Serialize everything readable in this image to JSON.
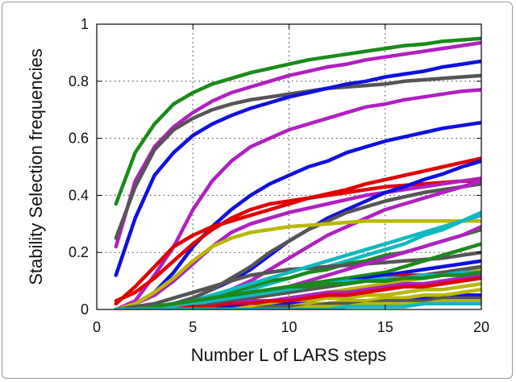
{
  "chart_data": {
    "type": "line",
    "xlabel": "Number L of LARS steps",
    "ylabel": "Stability Selection frequencies",
    "xlim": [
      0,
      20
    ],
    "ylim": [
      0,
      1
    ],
    "xticks": [
      0,
      5,
      10,
      15,
      20
    ],
    "xtick_labels": [
      "0",
      "5",
      "10",
      "15",
      "20"
    ],
    "yticks": [
      0,
      0.2,
      0.4,
      0.6,
      0.8,
      1
    ],
    "ytick_labels": [
      "0",
      "0.2",
      "0.4",
      "0.6",
      "0.8",
      "1"
    ],
    "grid": "dotted",
    "x": [
      1,
      2,
      3,
      4,
      5,
      6,
      7,
      8,
      9,
      10,
      11,
      12,
      13,
      14,
      15,
      16,
      17,
      18,
      19,
      20
    ],
    "series": [
      {
        "color": "#1a8a1a",
        "values": [
          0.37,
          0.55,
          0.65,
          0.72,
          0.76,
          0.79,
          0.81,
          0.83,
          0.845,
          0.86,
          0.875,
          0.885,
          0.895,
          0.905,
          0.915,
          0.925,
          0.93,
          0.94,
          0.945,
          0.95
        ]
      },
      {
        "color": "#b020c0",
        "values": [
          0.22,
          0.45,
          0.57,
          0.64,
          0.69,
          0.73,
          0.76,
          0.78,
          0.8,
          0.82,
          0.835,
          0.85,
          0.86,
          0.875,
          0.885,
          0.895,
          0.905,
          0.915,
          0.925,
          0.935
        ]
      },
      {
        "color": "#555555",
        "values": [
          0.25,
          0.43,
          0.56,
          0.63,
          0.67,
          0.7,
          0.72,
          0.735,
          0.745,
          0.755,
          0.765,
          0.775,
          0.78,
          0.785,
          0.79,
          0.8,
          0.805,
          0.81,
          0.815,
          0.82
        ]
      },
      {
        "color": "#1010e0",
        "values": [
          0.12,
          0.32,
          0.47,
          0.55,
          0.61,
          0.65,
          0.68,
          0.705,
          0.725,
          0.745,
          0.76,
          0.775,
          0.79,
          0.8,
          0.815,
          0.825,
          0.835,
          0.85,
          0.86,
          0.87
        ]
      },
      {
        "color": "#b020c0",
        "values": [
          0.0,
          0.03,
          0.12,
          0.22,
          0.35,
          0.45,
          0.52,
          0.57,
          0.6,
          0.63,
          0.65,
          0.67,
          0.69,
          0.71,
          0.72,
          0.735,
          0.745,
          0.755,
          0.765,
          0.77
        ]
      },
      {
        "color": "#1010e0",
        "values": [
          0.0,
          0.02,
          0.06,
          0.13,
          0.22,
          0.29,
          0.35,
          0.4,
          0.44,
          0.47,
          0.5,
          0.52,
          0.55,
          0.57,
          0.59,
          0.605,
          0.62,
          0.635,
          0.645,
          0.655
        ]
      },
      {
        "color": "#e00000",
        "values": [
          0.02,
          0.08,
          0.15,
          0.22,
          0.26,
          0.29,
          0.31,
          0.33,
          0.35,
          0.37,
          0.39,
          0.405,
          0.42,
          0.44,
          0.455,
          0.47,
          0.485,
          0.5,
          0.515,
          0.53
        ]
      },
      {
        "color": "#e00000",
        "values": [
          0.03,
          0.06,
          0.11,
          0.17,
          0.23,
          0.28,
          0.32,
          0.35,
          0.37,
          0.38,
          0.39,
          0.4,
          0.41,
          0.42,
          0.43,
          0.435,
          0.44,
          0.445,
          0.45,
          0.45
        ]
      },
      {
        "color": "#b020c0",
        "values": [
          0.0,
          0.02,
          0.05,
          0.1,
          0.16,
          0.22,
          0.27,
          0.3,
          0.32,
          0.34,
          0.355,
          0.37,
          0.385,
          0.4,
          0.41,
          0.42,
          0.43,
          0.44,
          0.45,
          0.46
        ]
      },
      {
        "color": "#1010e0",
        "values": [
          0.0,
          0.0,
          0.01,
          0.02,
          0.04,
          0.07,
          0.1,
          0.14,
          0.19,
          0.24,
          0.28,
          0.32,
          0.35,
          0.38,
          0.41,
          0.43,
          0.455,
          0.475,
          0.5,
          0.52
        ]
      },
      {
        "color": "#555555",
        "values": [
          0.0,
          0.0,
          0.01,
          0.02,
          0.04,
          0.07,
          0.11,
          0.15,
          0.2,
          0.24,
          0.28,
          0.31,
          0.34,
          0.36,
          0.38,
          0.395,
          0.41,
          0.42,
          0.43,
          0.44
        ]
      },
      {
        "color": "#b020c0",
        "values": [
          0.0,
          0.0,
          0.0,
          0.01,
          0.02,
          0.04,
          0.07,
          0.1,
          0.14,
          0.18,
          0.22,
          0.26,
          0.29,
          0.32,
          0.35,
          0.37,
          0.39,
          0.41,
          0.43,
          0.45
        ]
      },
      {
        "color": "#b8b800",
        "values": [
          0.0,
          0.02,
          0.06,
          0.11,
          0.17,
          0.22,
          0.25,
          0.27,
          0.28,
          0.29,
          0.295,
          0.3,
          0.305,
          0.31,
          0.31,
          0.31,
          0.31,
          0.31,
          0.31,
          0.31
        ]
      },
      {
        "color": "#10b8c0",
        "values": [
          0.0,
          0.0,
          0.0,
          0.01,
          0.02,
          0.03,
          0.05,
          0.07,
          0.09,
          0.11,
          0.13,
          0.15,
          0.17,
          0.19,
          0.21,
          0.23,
          0.26,
          0.28,
          0.31,
          0.34
        ]
      },
      {
        "color": "#1a8a1a",
        "values": [
          0.0,
          0.0,
          0.01,
          0.02,
          0.03,
          0.05,
          0.06,
          0.08,
          0.1,
          0.11,
          0.13,
          0.14,
          0.16,
          0.17,
          0.19,
          0.2,
          0.22,
          0.24,
          0.26,
          0.28
        ]
      },
      {
        "color": "#555555",
        "values": [
          0.0,
          0.01,
          0.02,
          0.04,
          0.06,
          0.08,
          0.1,
          0.12,
          0.13,
          0.14,
          0.145,
          0.15,
          0.155,
          0.16,
          0.165,
          0.17,
          0.175,
          0.18,
          0.19,
          0.2
        ]
      },
      {
        "color": "#10b8c0",
        "values": [
          0.0,
          0.0,
          0.01,
          0.02,
          0.03,
          0.05,
          0.07,
          0.09,
          0.11,
          0.13,
          0.15,
          0.17,
          0.19,
          0.21,
          0.23,
          0.25,
          0.27,
          0.29,
          0.31,
          0.33
        ]
      },
      {
        "color": "#b020c0",
        "values": [
          0.0,
          0.0,
          0.0,
          0.01,
          0.02,
          0.03,
          0.04,
          0.05,
          0.06,
          0.08,
          0.1,
          0.12,
          0.14,
          0.16,
          0.18,
          0.2,
          0.22,
          0.24,
          0.26,
          0.29
        ]
      },
      {
        "color": "#1a8a1a",
        "values": [
          0.0,
          0.0,
          0.01,
          0.02,
          0.03,
          0.04,
          0.05,
          0.06,
          0.07,
          0.08,
          0.09,
          0.1,
          0.11,
          0.12,
          0.13,
          0.15,
          0.17,
          0.19,
          0.21,
          0.23
        ]
      },
      {
        "color": "#1010e0",
        "values": [
          0.0,
          0.0,
          0.0,
          0.01,
          0.02,
          0.03,
          0.04,
          0.05,
          0.06,
          0.07,
          0.08,
          0.09,
          0.1,
          0.11,
          0.12,
          0.13,
          0.14,
          0.15,
          0.16,
          0.17
        ]
      },
      {
        "color": "#e00000",
        "values": [
          0.0,
          0.0,
          0.0,
          0.01,
          0.01,
          0.02,
          0.03,
          0.04,
          0.05,
          0.06,
          0.07,
          0.08,
          0.09,
          0.1,
          0.11,
          0.12,
          0.12,
          0.13,
          0.13,
          0.14
        ]
      },
      {
        "color": "#b8b800",
        "values": [
          0.0,
          0.0,
          0.0,
          0.0,
          0.01,
          0.01,
          0.02,
          0.02,
          0.03,
          0.04,
          0.05,
          0.06,
          0.07,
          0.08,
          0.09,
          0.1,
          0.11,
          0.12,
          0.13,
          0.14
        ]
      },
      {
        "color": "#555555",
        "values": [
          0.0,
          0.0,
          0.0,
          0.0,
          0.01,
          0.02,
          0.03,
          0.04,
          0.05,
          0.06,
          0.07,
          0.08,
          0.09,
          0.1,
          0.1,
          0.11,
          0.12,
          0.13,
          0.14,
          0.15
        ]
      },
      {
        "color": "#10b8c0",
        "values": [
          0.0,
          0.0,
          0.0,
          0.01,
          0.02,
          0.03,
          0.04,
          0.05,
          0.06,
          0.07,
          0.08,
          0.09,
          0.1,
          0.1,
          0.11,
          0.11,
          0.12,
          0.12,
          0.13,
          0.13
        ]
      },
      {
        "color": "#b020c0",
        "values": [
          0.0,
          0.0,
          0.0,
          0.0,
          0.01,
          0.01,
          0.02,
          0.03,
          0.03,
          0.04,
          0.05,
          0.06,
          0.06,
          0.07,
          0.08,
          0.09,
          0.09,
          0.1,
          0.11,
          0.12
        ]
      },
      {
        "color": "#1a8a1a",
        "values": [
          0.0,
          0.0,
          0.01,
          0.02,
          0.03,
          0.04,
          0.05,
          0.06,
          0.07,
          0.08,
          0.08,
          0.09,
          0.09,
          0.1,
          0.1,
          0.11,
          0.11,
          0.12,
          0.12,
          0.13
        ]
      },
      {
        "color": "#b8b800",
        "values": [
          0.0,
          0.0,
          0.0,
          0.0,
          0.0,
          0.01,
          0.01,
          0.02,
          0.02,
          0.03,
          0.03,
          0.04,
          0.04,
          0.05,
          0.05,
          0.06,
          0.07,
          0.07,
          0.08,
          0.09
        ]
      },
      {
        "color": "#e00000",
        "values": [
          0.0,
          0.0,
          0.0,
          0.0,
          0.01,
          0.01,
          0.02,
          0.02,
          0.03,
          0.03,
          0.04,
          0.05,
          0.05,
          0.06,
          0.07,
          0.08,
          0.08,
          0.09,
          0.1,
          0.11
        ]
      },
      {
        "color": "#1010e0",
        "values": [
          0.0,
          0.0,
          0.0,
          0.0,
          0.0,
          0.0,
          0.01,
          0.01,
          0.01,
          0.02,
          0.02,
          0.02,
          0.03,
          0.03,
          0.03,
          0.04,
          0.04,
          0.04,
          0.05,
          0.05
        ]
      },
      {
        "color": "#b8b800",
        "values": [
          0.0,
          0.0,
          0.0,
          0.0,
          0.0,
          0.0,
          0.0,
          0.01,
          0.01,
          0.01,
          0.02,
          0.02,
          0.03,
          0.03,
          0.04,
          0.04,
          0.05,
          0.05,
          0.06,
          0.07
        ]
      },
      {
        "color": "#555555",
        "values": [
          0.0,
          0.0,
          0.0,
          0.0,
          0.0,
          0.0,
          0.0,
          0.0,
          0.01,
          0.01,
          0.01,
          0.02,
          0.02,
          0.02,
          0.03,
          0.03,
          0.03,
          0.04,
          0.04,
          0.04
        ]
      },
      {
        "color": "#b8b800",
        "values": [
          0.0,
          0.0,
          0.0,
          0.0,
          0.0,
          0.0,
          0.0,
          0.0,
          0.0,
          0.0,
          0.01,
          0.01,
          0.01,
          0.02,
          0.02,
          0.02,
          0.02,
          0.03,
          0.03,
          0.03
        ]
      },
      {
        "color": "#10b8c0",
        "values": [
          0.0,
          0.0,
          0.0,
          0.0,
          0.0,
          0.0,
          0.0,
          0.0,
          0.0,
          0.0,
          0.0,
          0.0,
          0.01,
          0.01,
          0.01,
          0.01,
          0.02,
          0.02,
          0.02,
          0.02
        ]
      }
    ]
  }
}
